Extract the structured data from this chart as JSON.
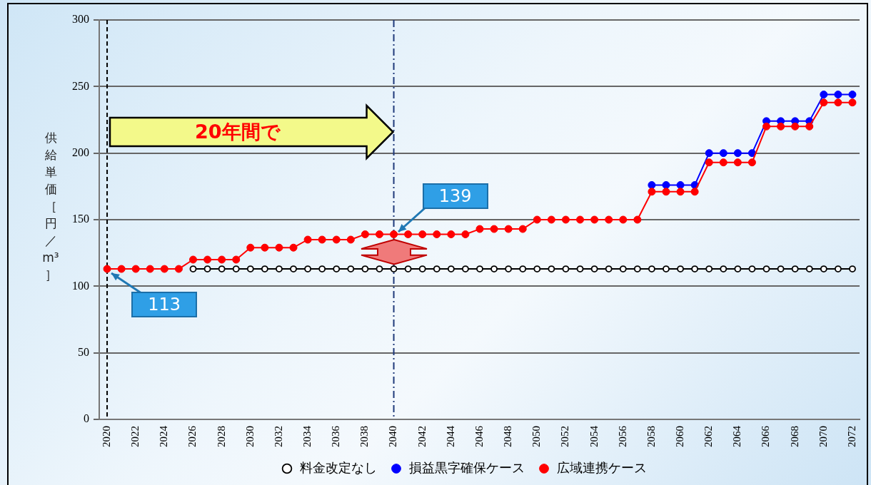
{
  "chart_data": {
    "type": "line",
    "ylabel": "供給単価［円／m³］",
    "x": [
      2020,
      2021,
      2022,
      2023,
      2024,
      2025,
      2026,
      2027,
      2028,
      2029,
      2030,
      2031,
      2032,
      2033,
      2034,
      2035,
      2036,
      2037,
      2038,
      2039,
      2040,
      2041,
      2042,
      2043,
      2044,
      2045,
      2046,
      2047,
      2048,
      2049,
      2050,
      2051,
      2052,
      2053,
      2054,
      2055,
      2056,
      2057,
      2058,
      2059,
      2060,
      2061,
      2062,
      2063,
      2064,
      2065,
      2066,
      2067,
      2068,
      2069,
      2070,
      2071,
      2072
    ],
    "series": [
      {
        "name": "料金改定なし",
        "color": "#000000",
        "values": [
          null,
          null,
          null,
          null,
          null,
          null,
          113,
          113,
          113,
          113,
          113,
          113,
          113,
          113,
          113,
          113,
          113,
          113,
          113,
          113,
          113,
          113,
          113,
          113,
          113,
          113,
          113,
          113,
          113,
          113,
          113,
          113,
          113,
          113,
          113,
          113,
          113,
          113,
          113,
          113,
          113,
          113,
          113,
          113,
          113,
          113,
          113,
          113,
          113,
          113,
          113,
          113,
          113
        ]
      },
      {
        "name": "損益黒字確保ケース",
        "color": "#0000ff",
        "values": [
          null,
          null,
          null,
          null,
          null,
          null,
          null,
          null,
          null,
          null,
          null,
          null,
          null,
          null,
          null,
          null,
          null,
          null,
          null,
          null,
          null,
          null,
          null,
          null,
          null,
          null,
          null,
          null,
          null,
          null,
          null,
          null,
          null,
          null,
          null,
          null,
          null,
          null,
          176,
          176,
          176,
          176,
          200,
          200,
          200,
          200,
          224,
          224,
          224,
          224,
          244,
          244,
          244
        ]
      },
      {
        "name": "広域連携ケース",
        "color": "#ff0000",
        "values": [
          113,
          113,
          113,
          113,
          113,
          113,
          120,
          120,
          120,
          120,
          129,
          129,
          129,
          129,
          135,
          135,
          135,
          135,
          139,
          139,
          139,
          139,
          139,
          139,
          139,
          139,
          143,
          143,
          143,
          143,
          150,
          150,
          150,
          150,
          150,
          150,
          150,
          150,
          171,
          171,
          171,
          171,
          193,
          193,
          193,
          193,
          220,
          220,
          220,
          220,
          238,
          238,
          238
        ]
      }
    ],
    "xlim": [
      2019.45,
      2072.5
    ],
    "xticks": [
      2020,
      2022,
      2024,
      2026,
      2028,
      2030,
      2032,
      2034,
      2036,
      2038,
      2040,
      2042,
      2044,
      2046,
      2048,
      2050,
      2052,
      2054,
      2056,
      2058,
      2060,
      2062,
      2064,
      2066,
      2068,
      2070,
      2072
    ],
    "ylim": [
      0,
      300
    ],
    "yticks": [
      0,
      50,
      100,
      150,
      200,
      250,
      300
    ],
    "grid": "y",
    "legend": "bottom",
    "marker": "circle",
    "line_style": "solid",
    "ref_lines": [
      {
        "axis": "x",
        "value": 2020,
        "color": "#000000",
        "line_style": "dashed"
      },
      {
        "axis": "x",
        "value": 2040,
        "color": "#1f3a7a",
        "line_style": "dashdot"
      }
    ],
    "annotations": [
      "20年間で",
      {
        "text": "139",
        "x": 2040,
        "y": 139
      },
      {
        "text": "113",
        "x": 2020,
        "y": 113
      }
    ]
  }
}
